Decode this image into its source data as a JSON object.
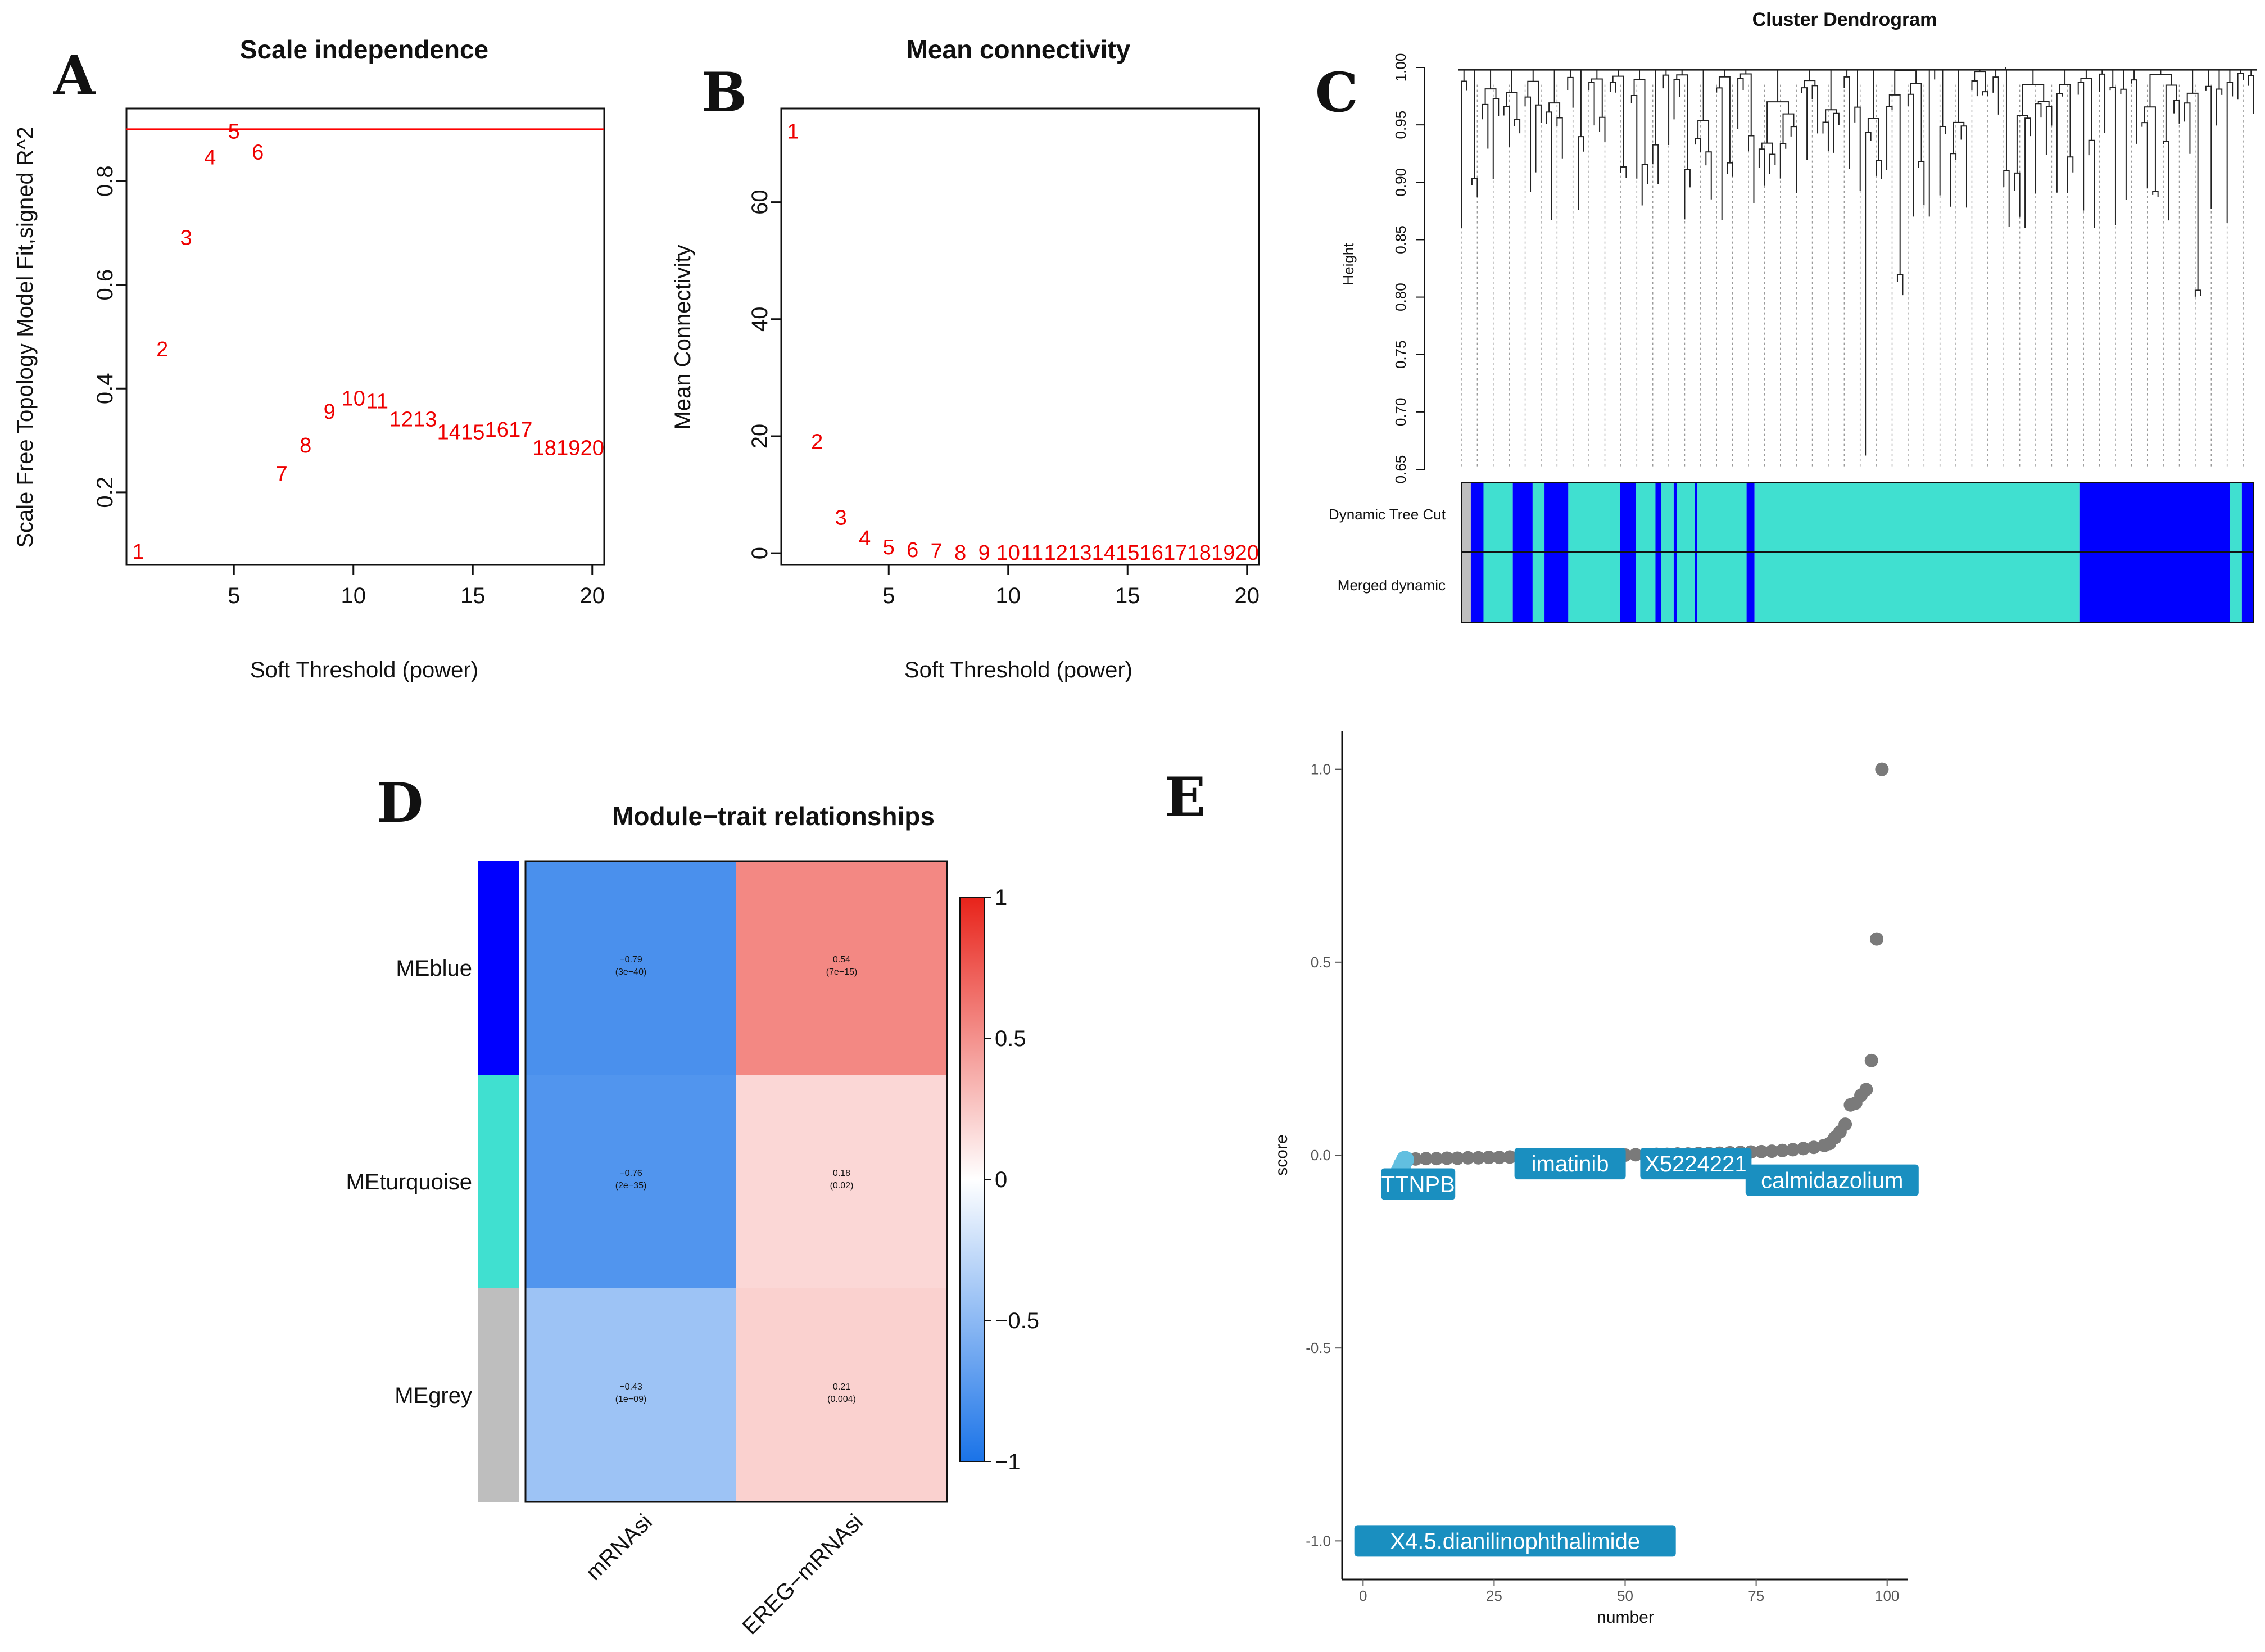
{
  "panel_labels": [
    "A",
    "B",
    "C",
    "D",
    "E"
  ],
  "chart_data": [
    {
      "id": "A",
      "type": "scatter",
      "title": "Scale independence",
      "xlabel": "Soft Threshold (power)",
      "ylabel": "Scale Free Topology Model Fit,signed R^2",
      "xlim": [
        0.5,
        20.5
      ],
      "ylim": [
        0.06,
        0.94
      ],
      "xticks": [
        5,
        10,
        15,
        20
      ],
      "yticks": [
        0.2,
        0.4,
        0.6,
        0.8
      ],
      "hline": 0.9,
      "hline_color": "#ff0000",
      "point_color": "#ee0000",
      "points": [
        {
          "x": 1,
          "y": 0.085
        },
        {
          "x": 2,
          "y": 0.475
        },
        {
          "x": 3,
          "y": 0.69
        },
        {
          "x": 4,
          "y": 0.845
        },
        {
          "x": 5,
          "y": 0.895
        },
        {
          "x": 6,
          "y": 0.855
        },
        {
          "x": 7,
          "y": 0.235
        },
        {
          "x": 8,
          "y": 0.29
        },
        {
          "x": 9,
          "y": 0.355
        },
        {
          "x": 10,
          "y": 0.38
        },
        {
          "x": 11,
          "y": 0.375
        },
        {
          "x": 12,
          "y": 0.34
        },
        {
          "x": 13,
          "y": 0.34
        },
        {
          "x": 14,
          "y": 0.315
        },
        {
          "x": 15,
          "y": 0.315
        },
        {
          "x": 16,
          "y": 0.32
        },
        {
          "x": 17,
          "y": 0.32
        },
        {
          "x": 18,
          "y": 0.285
        },
        {
          "x": 19,
          "y": 0.285
        },
        {
          "x": 20,
          "y": 0.285
        }
      ]
    },
    {
      "id": "B",
      "type": "scatter",
      "title": "Mean connectivity",
      "xlabel": "Soft Threshold (power)",
      "ylabel": "Mean Connectivity",
      "xlim": [
        0.5,
        20.5
      ],
      "ylim": [
        -2,
        76
      ],
      "xticks": [
        5,
        10,
        15,
        20
      ],
      "yticks": [
        0,
        20,
        40,
        60
      ],
      "point_color": "#ee0000",
      "points": [
        {
          "x": 1,
          "y": 72
        },
        {
          "x": 2,
          "y": 19
        },
        {
          "x": 3,
          "y": 6
        },
        {
          "x": 4,
          "y": 2.5
        },
        {
          "x": 5,
          "y": 1
        },
        {
          "x": 6,
          "y": 0.5
        },
        {
          "x": 7,
          "y": 0.3
        },
        {
          "x": 8,
          "y": 0
        },
        {
          "x": 9,
          "y": 0
        },
        {
          "x": 10,
          "y": 0
        },
        {
          "x": 11,
          "y": 0
        },
        {
          "x": 12,
          "y": 0
        },
        {
          "x": 13,
          "y": 0
        },
        {
          "x": 14,
          "y": 0
        },
        {
          "x": 15,
          "y": 0
        },
        {
          "x": 16,
          "y": 0
        },
        {
          "x": 17,
          "y": 0
        },
        {
          "x": 18,
          "y": 0
        },
        {
          "x": 19,
          "y": 0
        },
        {
          "x": 20,
          "y": 0
        }
      ]
    },
    {
      "id": "C",
      "type": "dendrogram",
      "title": "Cluster Dendrogram",
      "ylabel": "Height",
      "ylim": [
        0.65,
        1.0
      ],
      "yticks": [
        0.65,
        0.7,
        0.75,
        0.8,
        0.85,
        0.9,
        0.95,
        1.0
      ],
      "row_labels": [
        "Dynamic Tree Cut",
        "Merged dynamic"
      ],
      "module_colors": {
        "grey": "#bebebe",
        "blue": "#0000ff",
        "turquoise": "#40e0d0"
      },
      "module_segments": [
        {
          "module": "grey",
          "start": 0.0,
          "end": 0.012
        },
        {
          "module": "blue",
          "start": 0.012,
          "end": 0.028
        },
        {
          "module": "turquoise",
          "start": 0.028,
          "end": 0.065
        },
        {
          "module": "blue",
          "start": 0.065,
          "end": 0.09
        },
        {
          "module": "turquoise",
          "start": 0.09,
          "end": 0.105
        },
        {
          "module": "blue",
          "start": 0.105,
          "end": 0.135
        },
        {
          "module": "turquoise",
          "start": 0.135,
          "end": 0.2
        },
        {
          "module": "blue",
          "start": 0.2,
          "end": 0.22
        },
        {
          "module": "turquoise",
          "start": 0.22,
          "end": 0.245
        },
        {
          "module": "blue",
          "start": 0.245,
          "end": 0.252
        },
        {
          "module": "turquoise",
          "start": 0.252,
          "end": 0.268
        },
        {
          "module": "blue",
          "start": 0.268,
          "end": 0.272
        },
        {
          "module": "turquoise",
          "start": 0.272,
          "end": 0.295
        },
        {
          "module": "blue",
          "start": 0.295,
          "end": 0.298
        },
        {
          "module": "turquoise",
          "start": 0.298,
          "end": 0.36
        },
        {
          "module": "blue",
          "start": 0.36,
          "end": 0.37
        },
        {
          "module": "turquoise",
          "start": 0.37,
          "end": 0.78
        },
        {
          "module": "blue",
          "start": 0.78,
          "end": 0.97
        },
        {
          "module": "turquoise",
          "start": 0.97,
          "end": 0.985
        },
        {
          "module": "blue",
          "start": 0.985,
          "end": 1.0
        }
      ]
    },
    {
      "id": "D",
      "type": "heatmap",
      "title": "Module−trait relationships",
      "rows": [
        "MEblue",
        "MEturquoise",
        "MEgrey"
      ],
      "row_colors": [
        "#0000ff",
        "#40e0d0",
        "#bebebe"
      ],
      "columns": [
        "mRNAsi",
        "EREG−mRNAsi"
      ],
      "values": [
        [
          -0.79,
          0.54
        ],
        [
          -0.76,
          0.18
        ],
        [
          -0.43,
          0.21
        ]
      ],
      "labels": [
        [
          [
            "−0.79",
            "(3e−40)"
          ],
          [
            "0.54",
            "(7e−15)"
          ]
        ],
        [
          [
            "−0.76",
            "(2e−35)"
          ],
          [
            "0.18",
            "(0.02)"
          ]
        ],
        [
          [
            "−0.43",
            "(1e−09)"
          ],
          [
            "0.21",
            "(0.004)"
          ]
        ]
      ],
      "legend_ticks": [
        "1",
        "0.5",
        "0",
        "−0.5",
        "−1"
      ],
      "legend_range": [
        -1,
        1
      ],
      "legend_colors": {
        "low": "#1a73e8",
        "mid": "#ffffff",
        "high": "#e8231a"
      }
    },
    {
      "id": "E",
      "type": "scatter",
      "xlabel": "number",
      "ylabel": "score",
      "xlim": [
        -4,
        104
      ],
      "ylim": [
        -1.1,
        1.1
      ],
      "xticks": [
        0,
        25,
        50,
        75,
        100
      ],
      "yticks": [
        -1.0,
        -0.5,
        0.0,
        0.5,
        1.0
      ],
      "ytick_labels": [
        "-1.0",
        "-0.5",
        "0.0",
        "0.5",
        "1.0"
      ],
      "gray_color": "#7a7a7a",
      "highlight_color": "#62bfe0",
      "label_box_color": "#1a8fc0",
      "gray_points": [
        {
          "x": 8,
          "y": -0.01
        },
        {
          "x": 10,
          "y": -0.01
        },
        {
          "x": 12,
          "y": -0.009
        },
        {
          "x": 14,
          "y": -0.009
        },
        {
          "x": 16,
          "y": -0.008
        },
        {
          "x": 18,
          "y": -0.008
        },
        {
          "x": 20,
          "y": -0.007
        },
        {
          "x": 22,
          "y": -0.007
        },
        {
          "x": 24,
          "y": -0.006
        },
        {
          "x": 26,
          "y": -0.006
        },
        {
          "x": 28,
          "y": -0.005
        },
        {
          "x": 30,
          "y": -0.005
        },
        {
          "x": 32,
          "y": -0.004
        },
        {
          "x": 34,
          "y": -0.004
        },
        {
          "x": 36,
          "y": -0.003
        },
        {
          "x": 38,
          "y": -0.003
        },
        {
          "x": 40,
          "y": -0.002
        },
        {
          "x": 42,
          "y": -0.002
        },
        {
          "x": 44,
          "y": -0.001
        },
        {
          "x": 46,
          "y": -0.001
        },
        {
          "x": 48,
          "y": 0.0
        },
        {
          "x": 50,
          "y": 0.0
        },
        {
          "x": 52,
          "y": 0.001
        },
        {
          "x": 54,
          "y": 0.001
        },
        {
          "x": 56,
          "y": 0.002
        },
        {
          "x": 58,
          "y": 0.002
        },
        {
          "x": 60,
          "y": 0.003
        },
        {
          "x": 62,
          "y": 0.003
        },
        {
          "x": 64,
          "y": 0.004
        },
        {
          "x": 66,
          "y": 0.004
        },
        {
          "x": 68,
          "y": 0.005
        },
        {
          "x": 70,
          "y": 0.006
        },
        {
          "x": 72,
          "y": 0.007
        },
        {
          "x": 74,
          "y": 0.008
        },
        {
          "x": 76,
          "y": 0.009
        },
        {
          "x": 78,
          "y": 0.01
        },
        {
          "x": 80,
          "y": 0.012
        },
        {
          "x": 82,
          "y": 0.014
        },
        {
          "x": 84,
          "y": 0.017
        },
        {
          "x": 86,
          "y": 0.02
        },
        {
          "x": 88,
          "y": 0.025
        },
        {
          "x": 89,
          "y": 0.03
        },
        {
          "x": 90,
          "y": 0.045
        },
        {
          "x": 91,
          "y": 0.06
        },
        {
          "x": 92,
          "y": 0.08
        },
        {
          "x": 93,
          "y": 0.13
        },
        {
          "x": 94,
          "y": 0.135
        },
        {
          "x": 95,
          "y": 0.155
        },
        {
          "x": 96,
          "y": 0.17
        },
        {
          "x": 97,
          "y": 0.245
        },
        {
          "x": 98,
          "y": 0.56
        },
        {
          "x": 99,
          "y": 1.0
        }
      ],
      "highlight_points": [
        {
          "x": 1,
          "y": -1.0
        },
        {
          "x": 6,
          "y": -0.075
        },
        {
          "x": 6.5,
          "y": -0.06
        },
        {
          "x": 7,
          "y": -0.04
        },
        {
          "x": 7.5,
          "y": -0.025
        },
        {
          "x": 8,
          "y": -0.012
        }
      ],
      "annotations": [
        {
          "text": "TTNPB",
          "x": 10.5,
          "y": -0.075
        },
        {
          "text": "imatinib",
          "x": 39.5,
          "y": -0.022
        },
        {
          "text": "X5224221",
          "x": 63.5,
          "y": -0.022
        },
        {
          "text": "calmidazolium",
          "x": 89.5,
          "y": -0.065
        },
        {
          "text": "X4.5.dianilinophthalimide",
          "x": 29,
          "y": -1.0
        }
      ]
    }
  ]
}
